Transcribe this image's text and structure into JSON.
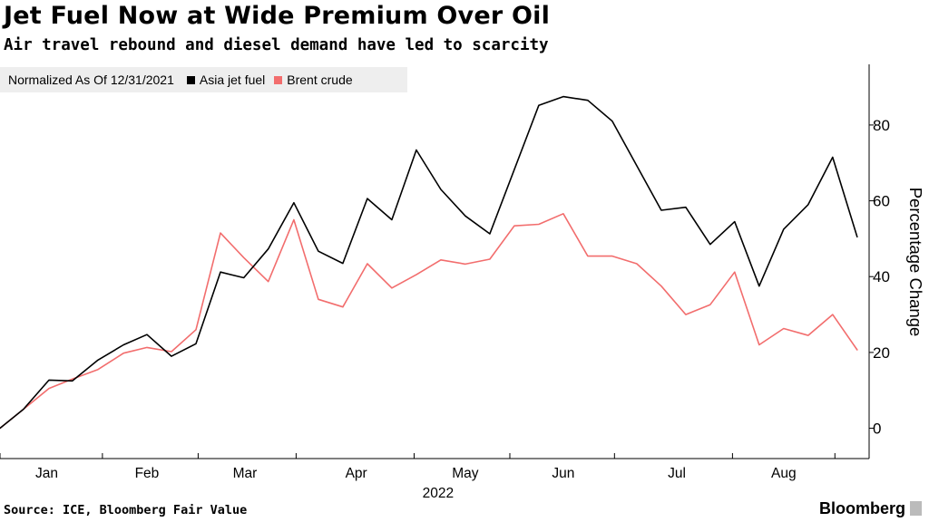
{
  "header": {
    "title": "Jet Fuel Now at Wide Premium Over Oil",
    "subtitle": "Air travel rebound and diesel demand have led to scarcity"
  },
  "legend": {
    "note": "Normalized As Of 12/31/2021",
    "items": [
      {
        "label": "Asia jet fuel",
        "color": "#000000"
      },
      {
        "label": "Brent crude",
        "color": "#f26d6d"
      }
    ]
  },
  "footer": {
    "source": "Source: ICE, Bloomberg Fair Value",
    "brand": "Bloomberg"
  },
  "chart_data": {
    "type": "line",
    "ylabel": "Percentage Change",
    "xlabel": "2022",
    "ylim": [
      -8,
      96
    ],
    "yticks": [
      0,
      20,
      40,
      60,
      80
    ],
    "xlim": [
      0,
      38.1
    ],
    "xticks": [
      {
        "label": "Jan",
        "x": 2.1
      },
      {
        "label": "Feb",
        "x": 6.6
      },
      {
        "label": "Mar",
        "x": 11.0
      },
      {
        "label": "Apr",
        "x": 16.0
      },
      {
        "label": "May",
        "x": 20.9
      },
      {
        "label": "Jun",
        "x": 25.3
      },
      {
        "label": "Jul",
        "x": 30.4
      },
      {
        "label": "Aug",
        "x": 35.2
      }
    ],
    "minor_ticks": [
      0,
      4.6,
      8.9,
      13.3,
      18.6,
      22.9,
      27.6,
      32.9,
      37.5
    ],
    "series": [
      {
        "name": "Asia jet fuel",
        "color": "#000000",
        "points": [
          [
            0,
            0
          ],
          [
            1.05,
            5
          ],
          [
            2.2,
            12.7
          ],
          [
            3.25,
            12.5
          ],
          [
            4.4,
            18
          ],
          [
            5.55,
            22
          ],
          [
            6.6,
            24.7
          ],
          [
            7.7,
            19
          ],
          [
            8.8,
            22.3
          ],
          [
            9.9,
            41.2
          ],
          [
            10.95,
            39.7
          ],
          [
            12.05,
            47.3
          ],
          [
            13.2,
            59.5
          ],
          [
            14.3,
            46.7
          ],
          [
            15.4,
            43.5
          ],
          [
            16.5,
            60.6
          ],
          [
            17.6,
            55
          ],
          [
            18.7,
            73.4
          ],
          [
            19.8,
            63
          ],
          [
            20.9,
            56
          ],
          [
            22.0,
            51.3
          ],
          [
            24.2,
            85.2
          ],
          [
            25.3,
            87.5
          ],
          [
            26.4,
            86.5
          ],
          [
            27.5,
            81
          ],
          [
            29.7,
            57.5
          ],
          [
            30.8,
            58.3
          ],
          [
            31.9,
            48.5
          ],
          [
            33.0,
            54.5
          ],
          [
            34.1,
            37.5
          ],
          [
            35.2,
            52.5
          ],
          [
            36.3,
            59
          ],
          [
            37.4,
            71.5
          ],
          [
            38.5,
            50.5
          ]
        ]
      },
      {
        "name": "Brent crude",
        "color": "#f26d6d",
        "points": [
          [
            0,
            0
          ],
          [
            1.05,
            5
          ],
          [
            2.2,
            10.5
          ],
          [
            3.25,
            13
          ],
          [
            4.4,
            15.5
          ],
          [
            5.55,
            19.8
          ],
          [
            6.6,
            21.3
          ],
          [
            7.7,
            20.2
          ],
          [
            8.8,
            26
          ],
          [
            9.9,
            51.5
          ],
          [
            10.95,
            45
          ],
          [
            12.05,
            38.7
          ],
          [
            13.2,
            55
          ],
          [
            14.3,
            34
          ],
          [
            15.4,
            32
          ],
          [
            16.5,
            43.4
          ],
          [
            17.6,
            37
          ],
          [
            18.7,
            40.5
          ],
          [
            19.8,
            44.4
          ],
          [
            20.9,
            43.3
          ],
          [
            22.0,
            44.6
          ],
          [
            23.1,
            53.4
          ],
          [
            24.2,
            53.8
          ],
          [
            25.3,
            56.6
          ],
          [
            26.4,
            45.4
          ],
          [
            27.5,
            45.4
          ],
          [
            28.6,
            43.4
          ],
          [
            29.7,
            37.5
          ],
          [
            30.8,
            30
          ],
          [
            31.9,
            32.6
          ],
          [
            33.0,
            41.2
          ],
          [
            34.1,
            22
          ],
          [
            35.2,
            26.3
          ],
          [
            36.3,
            24.5
          ],
          [
            37.4,
            30
          ],
          [
            38.5,
            20.7
          ]
        ]
      }
    ]
  }
}
